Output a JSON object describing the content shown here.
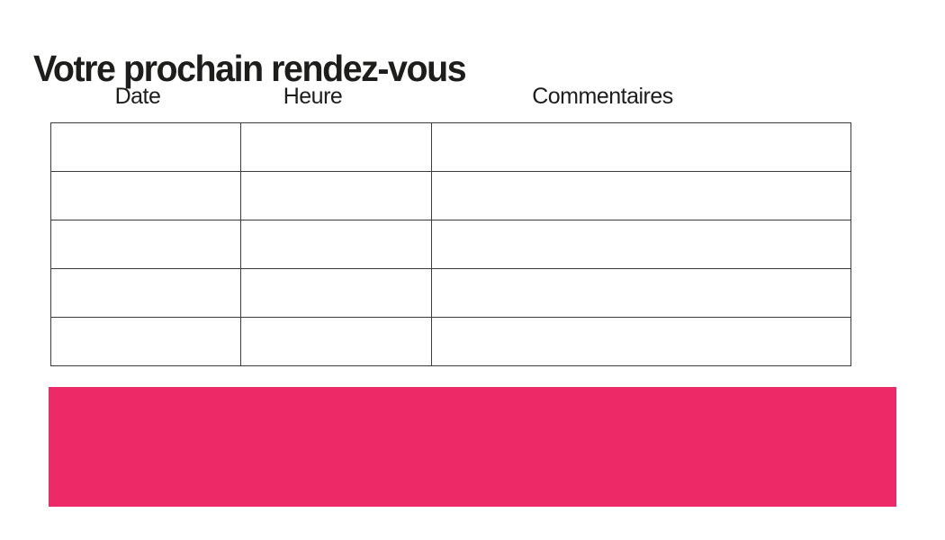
{
  "page": {
    "title": "Votre prochain rendez-vous",
    "accent_color": "#ED2A67"
  },
  "appointments_table": {
    "columns": [
      {
        "key": "date",
        "label": "Date"
      },
      {
        "key": "heure",
        "label": "Heure"
      },
      {
        "key": "commentaires",
        "label": "Commentaires"
      }
    ],
    "rows": [
      {
        "date": "",
        "heure": "",
        "commentaires": ""
      },
      {
        "date": "",
        "heure": "",
        "commentaires": ""
      },
      {
        "date": "",
        "heure": "",
        "commentaires": ""
      },
      {
        "date": "",
        "heure": "",
        "commentaires": ""
      },
      {
        "date": "",
        "heure": "",
        "commentaires": ""
      }
    ]
  },
  "banner": {
    "text": ""
  }
}
